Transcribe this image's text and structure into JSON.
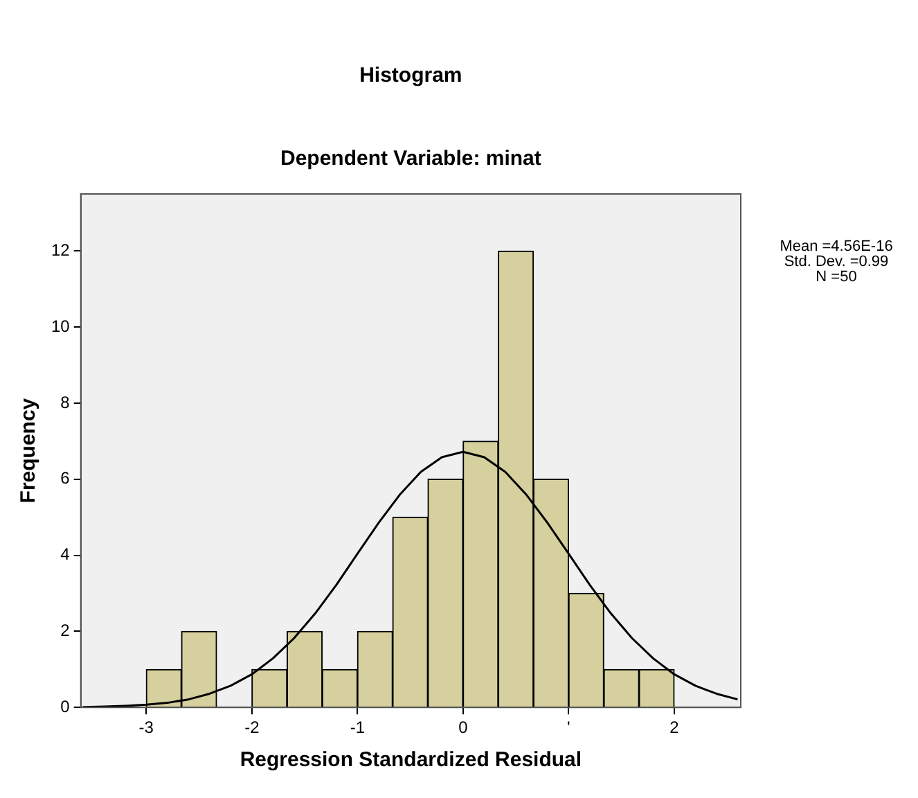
{
  "chart_data": {
    "type": "histogram",
    "title": "Histogram",
    "subtitle": "Dependent Variable: minat",
    "xlabel": "Regression Standardized Residual",
    "ylabel": "Frequency",
    "bins": [
      -3,
      -2.667,
      -2.333,
      -2,
      -1.667,
      -1.333,
      -1,
      -0.667,
      -0.333,
      0,
      0.333,
      0.667,
      1,
      1.333,
      1.667,
      2
    ],
    "values": [
      1,
      2,
      0,
      1,
      2,
      1,
      2,
      5,
      6,
      7,
      12,
      6,
      3,
      1,
      1
    ],
    "color": "#d5d09d",
    "series": [
      {
        "type": "line",
        "color": "#000000",
        "x": [
          -3.6,
          -3.4,
          -3.2,
          -3.0,
          -2.8,
          -2.6,
          -2.4,
          -2.2,
          -2.0,
          -1.8,
          -1.6,
          -1.4,
          -1.2,
          -1.0,
          -0.8,
          -0.6,
          -0.4,
          -0.2,
          0,
          0.2,
          0.4,
          0.6,
          0.8,
          1.0,
          1.2,
          1.4,
          1.6,
          1.8,
          2.0,
          2.2,
          2.4,
          2.6
        ],
        "values": [
          0.01,
          0.02,
          0.04,
          0.07,
          0.12,
          0.21,
          0.36,
          0.57,
          0.87,
          1.29,
          1.82,
          2.47,
          3.22,
          4.04,
          4.85,
          5.59,
          6.19,
          6.58,
          6.72,
          6.58,
          6.19,
          5.59,
          4.85,
          4.04,
          3.22,
          2.47,
          1.82,
          1.29,
          0.87,
          0.57,
          0.36,
          0.21
        ]
      }
    ],
    "xlim": [
      -3.62,
      2.63
    ],
    "xticks": [
      -3,
      -2,
      -1,
      0,
      {
        "value": 1,
        "label": "'"
      },
      2
    ],
    "ylim": [
      0,
      13.5
    ],
    "yticks": [
      0,
      2,
      4,
      6,
      8,
      10,
      12
    ],
    "grid": false,
    "legend": false,
    "annotations": [
      "Mean =4.56E-16",
      "Std. Dev. =0.99",
      "N =50"
    ]
  }
}
